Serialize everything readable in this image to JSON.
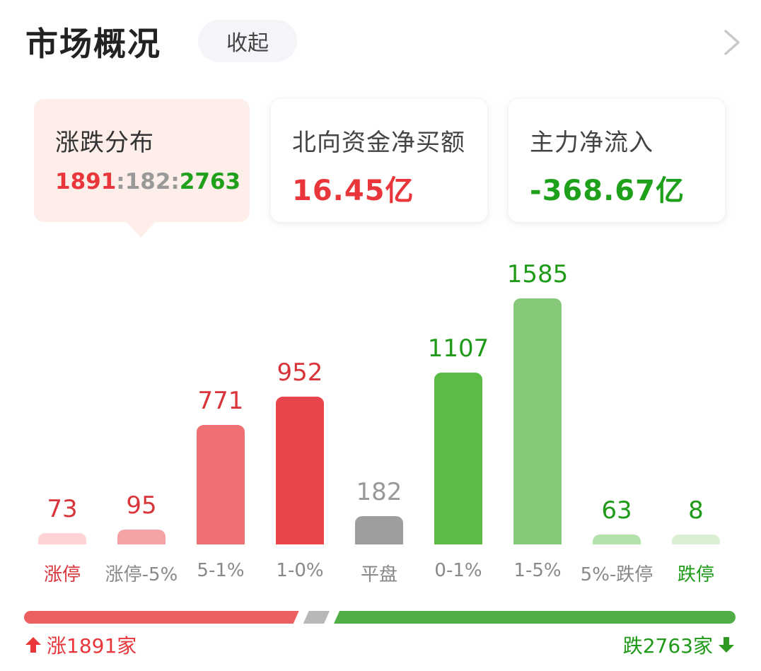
{
  "header": {
    "title": "市场概况",
    "collapse_label": "收起"
  },
  "cards": [
    {
      "label": "涨跌分布",
      "ratio_up": "1891",
      "ratio_sep1": ":",
      "ratio_flat": "182",
      "ratio_sep2": ":",
      "ratio_down": "2763"
    },
    {
      "label": "北向资金净买额",
      "value": "16.45亿"
    },
    {
      "label": "主力净流入",
      "value": "-368.67亿"
    }
  ],
  "colors": {
    "up": "#e8363a",
    "down": "#1fa01a",
    "flat": "#999999"
  },
  "chart_data": {
    "type": "bar",
    "categories": [
      "涨停",
      "涨停-5%",
      "5-1%",
      "1-0%",
      "平盘",
      "0-1%",
      "1-5%",
      "5%-跌停",
      "跌停"
    ],
    "values": [
      73,
      95,
      771,
      952,
      182,
      1107,
      1585,
      63,
      8
    ],
    "value_labels": [
      "73",
      "95",
      "771",
      "952",
      "182",
      "1107",
      "1585",
      "63",
      "8"
    ],
    "bar_colors": [
      "#ffd2d6",
      "#f6a3a8",
      "#ee7073",
      "#e8464b",
      "#9e9e9e",
      "#5bbb44",
      "#86c979",
      "#b3e2aa",
      "#d9f0d4"
    ],
    "label_colors": [
      "#d9343a",
      "#d9343a",
      "#d9343a",
      "#d9343a",
      "#999999",
      "#1f9a18",
      "#1f9a18",
      "#1f9a18",
      "#1f9a18"
    ],
    "cat_colors": [
      "#d9343a",
      "#888888",
      "#888888",
      "#888888",
      "#888888",
      "#888888",
      "#888888",
      "#888888",
      "#1f9a18"
    ]
  },
  "summary": {
    "up_text": "涨1891家",
    "down_text": "跌2763家",
    "up_count": 1891,
    "flat_count": 182,
    "down_count": 2763
  }
}
